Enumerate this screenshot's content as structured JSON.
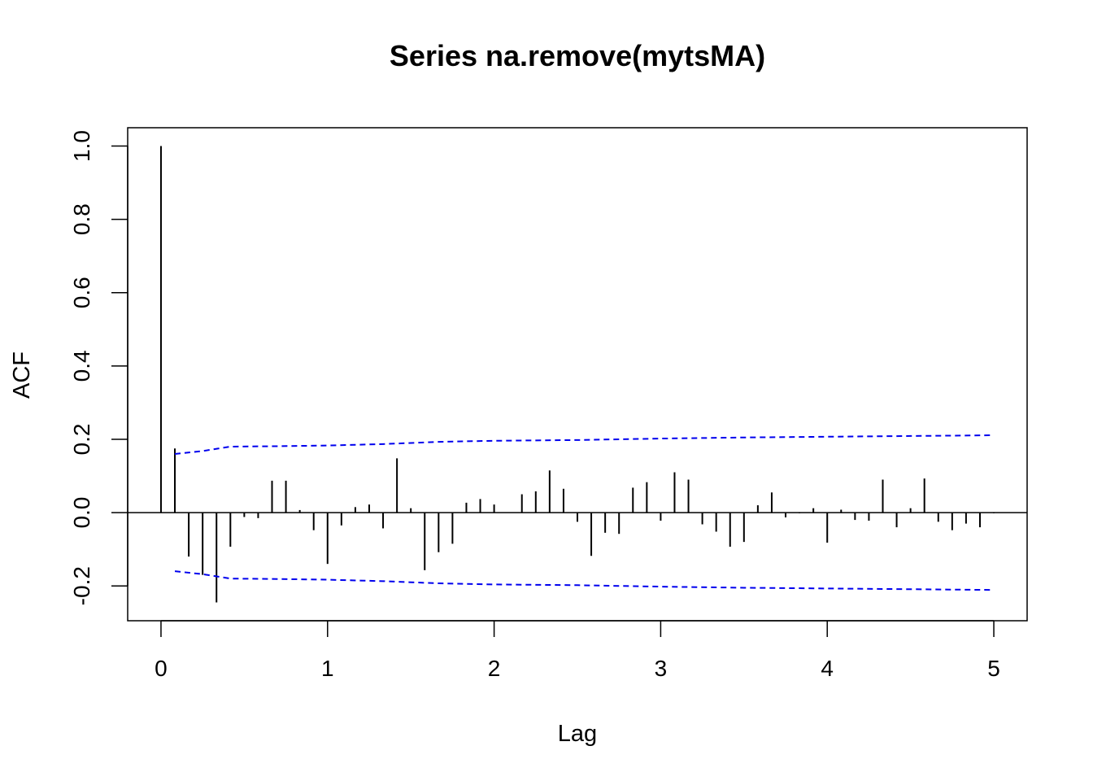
{
  "chart_data": {
    "type": "bar",
    "title": "Series  na.remove(mytsMA)",
    "xlabel": "Lag",
    "ylabel": "ACF",
    "xlim": [
      -0.2,
      5.2
    ],
    "ylim": [
      -0.295,
      1.05
    ],
    "x_ticks": [
      "0",
      "1",
      "2",
      "3",
      "4",
      "5"
    ],
    "y_ticks": [
      "-0.2",
      "0.0",
      "0.2",
      "0.4",
      "0.6",
      "0.8",
      "1.0"
    ],
    "zero_line": 0,
    "colors": {
      "bars": "#000000",
      "confidence_band": "#0000ee"
    },
    "series": [
      {
        "lag": [
          0,
          0.0833,
          0.1667,
          0.25,
          0.3333,
          0.4167,
          0.5,
          0.5833,
          0.6667,
          0.75,
          0.8333,
          0.9167,
          1,
          1.0833,
          1.1667,
          1.25,
          1.3333,
          1.4167,
          1.5,
          1.5833,
          1.6667,
          1.75,
          1.8333,
          1.9167,
          2,
          2.0833,
          2.1667,
          2.25,
          2.3333,
          2.4167,
          2.5,
          2.5833,
          2.6667,
          2.75,
          2.8333,
          2.9167,
          3,
          3.0833,
          3.1667,
          3.25,
          3.3333,
          3.4167,
          3.5,
          3.5833,
          3.6667,
          3.75,
          3.8333,
          3.9167,
          4,
          4.0833,
          4.1667,
          4.25,
          4.3333,
          4.4167,
          4.5,
          4.5833,
          4.6667,
          4.75,
          4.8333,
          4.9167,
          5
        ],
        "acf": [
          1.0,
          0.175,
          -0.12,
          -0.17,
          -0.245,
          -0.093,
          -0.012,
          -0.015,
          0.087,
          0.087,
          0.007,
          -0.048,
          -0.14,
          -0.035,
          0.015,
          0.022,
          -0.043,
          0.148,
          0.012,
          -0.157,
          -0.108,
          -0.085,
          0.027,
          0.037,
          0.022,
          0.0,
          0.05,
          0.058,
          0.115,
          0.065,
          -0.025,
          -0.118,
          -0.055,
          -0.058,
          0.068,
          0.083,
          -0.022,
          0.11,
          0.09,
          -0.032,
          -0.052,
          -0.093,
          -0.08,
          0.02,
          0.055,
          -0.013,
          -0.002,
          0.012,
          -0.082,
          0.008,
          -0.02,
          -0.022,
          0.09,
          -0.04,
          0.012,
          0.093,
          -0.025,
          -0.048,
          -0.03,
          -0.04,
          -0.002
        ]
      }
    ],
    "confidence_band": {
      "lag": [
        0.0833,
        0.25,
        0.4167,
        0.6667,
        1.0,
        1.3333,
        1.6667,
        2.0,
        2.5,
        3.0,
        3.5,
        4.0,
        4.5,
        5.0
      ],
      "upper": [
        0.16,
        0.168,
        0.18,
        0.181,
        0.183,
        0.187,
        0.193,
        0.196,
        0.198,
        0.202,
        0.205,
        0.207,
        0.209,
        0.211
      ],
      "lower": [
        -0.16,
        -0.168,
        -0.18,
        -0.181,
        -0.183,
        -0.187,
        -0.193,
        -0.196,
        -0.198,
        -0.202,
        -0.205,
        -0.207,
        -0.209,
        -0.211
      ]
    }
  }
}
